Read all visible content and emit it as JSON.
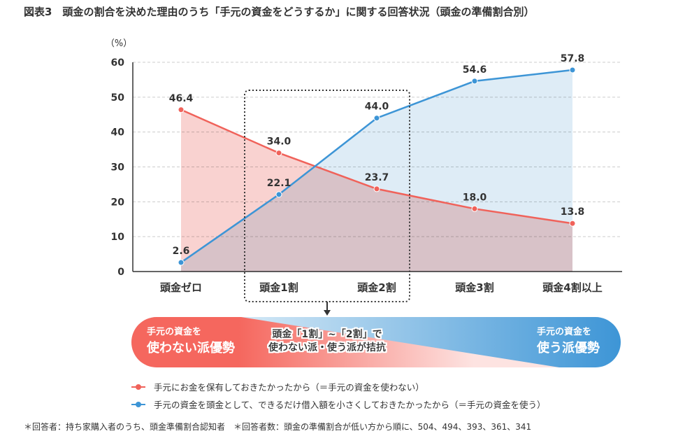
{
  "title": "図表3　頭金の割合を決めた理由のうち「手元の資金をどうするか」に関する回答状況（頭金の準備割合別）",
  "chart_data": {
    "type": "area",
    "title": "図表3　頭金の割合を決めた理由のうち「手元の資金をどうするか」に関する回答状況（頭金の準備割合別）",
    "ylabel": "（%）",
    "ylim": [
      0,
      60
    ],
    "yticks": [
      "0",
      "10",
      "20",
      "30",
      "40",
      "50",
      "60"
    ],
    "grid": true,
    "categories": [
      "頭金ゼロ",
      "頭金1割",
      "頭金2割",
      "頭金3割",
      "頭金4割以上"
    ],
    "series": [
      {
        "name": "手元にお金を保有しておきたかったから（＝手元の資金を使わない）",
        "values": [
          46.4,
          34.0,
          23.7,
          18.0,
          13.8
        ],
        "labels": [
          "46.4",
          "34.0",
          "23.7",
          "18.0",
          "13.8"
        ],
        "color": "#f0625a",
        "fill": "#f9d2d0"
      },
      {
        "name": "手元の資金を頭金として、できるだけ借入額を小さくしておきたかったから（＝手元の資金を使う）",
        "values": [
          2.6,
          22.1,
          44.0,
          54.6,
          57.8
        ],
        "labels": [
          "2.6",
          "22.1",
          "44.0",
          "54.6",
          "57.8"
        ],
        "color": "#3d95d6",
        "fill": "#d3e5f3"
      }
    ],
    "legend_position": "bottom"
  },
  "banner": {
    "left_line1": "手元の資金を",
    "left_line2": "使わない派優勢",
    "center_line1": "頭金「1割」~「2割」で",
    "center_line2": "使わない派・使う派が拮抗",
    "right_line1": "手元の資金を",
    "right_line2": "使う派優勢"
  },
  "footnote": "＊回答者：持ち家購入者のうち、頭金準備割合認知者　＊回答者数：頭金の準備割合が低い方から順に、504、494、393、361、341"
}
